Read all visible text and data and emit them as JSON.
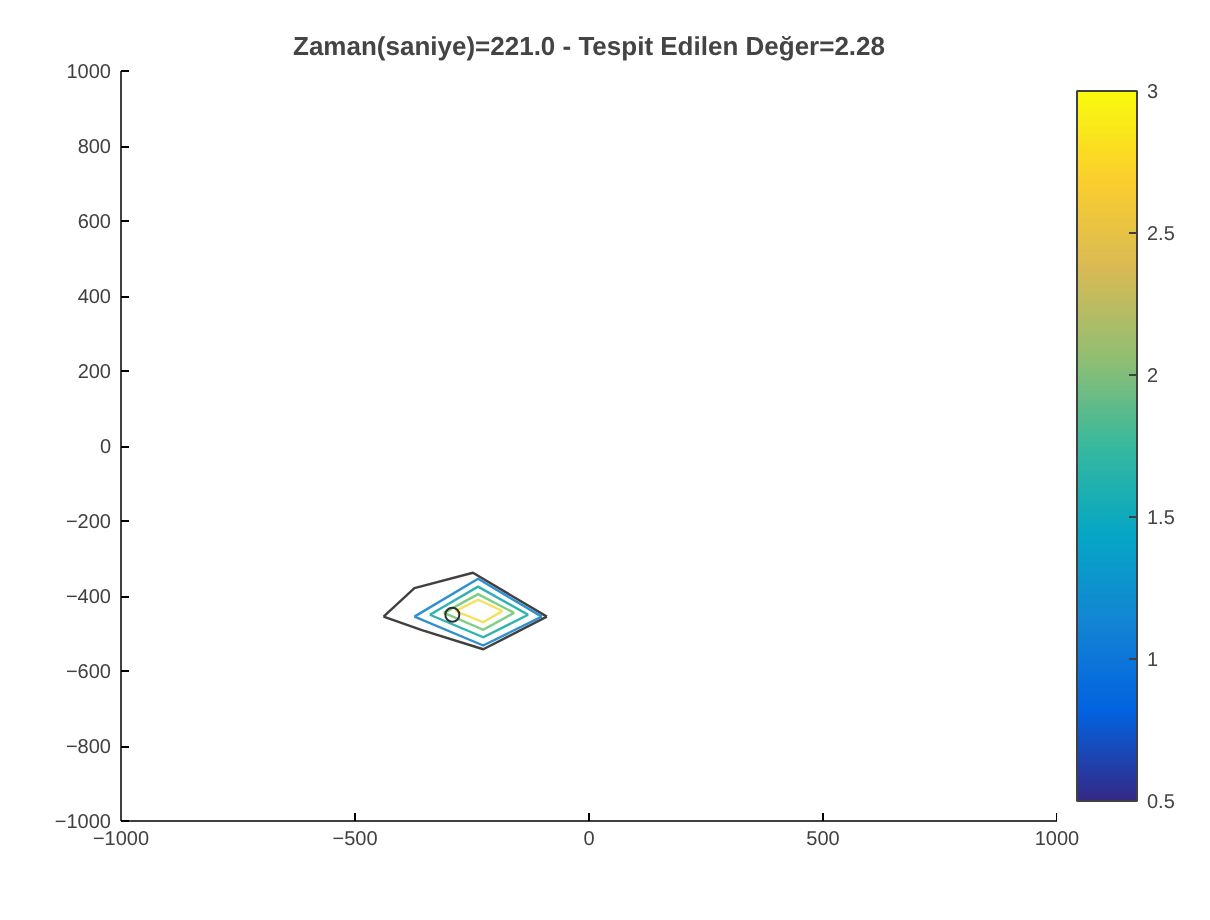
{
  "chart_data": {
    "type": "line",
    "title": "Zaman(saniye)=221.0 - Tespit Edilen Değer=2.28",
    "xlim": [
      -1000,
      1000
    ],
    "xticks": [
      -1000,
      -500,
      0,
      500,
      1000
    ],
    "ylim": [
      -1000,
      1000
    ],
    "yticks": [
      -1000,
      -800,
      -600,
      -400,
      -200,
      0,
      200,
      400,
      600,
      800,
      1000
    ],
    "clim": [
      0.5,
      3
    ],
    "cticks": [
      0.5,
      1,
      1.5,
      2,
      2.5,
      3
    ],
    "grid": false,
    "series": [
      {
        "color": "#404040",
        "x": [
          -439,
          -373,
          -248,
          -90
        ],
        "values": [
          -455,
          -379,
          -338,
          -455
        ]
      },
      {
        "color": "#404040",
        "x": [
          -439,
          -357,
          -226,
          -90
        ],
        "values": [
          -455,
          -491,
          -542,
          -455
        ]
      },
      {
        "color": "#2f8fd0",
        "x": [
          -373,
          -237,
          -101
        ],
        "values": [
          -455,
          -354,
          -455
        ]
      },
      {
        "color": "#2f8fd0",
        "x": [
          -373,
          -226,
          -101
        ],
        "values": [
          -455,
          -532,
          -455
        ]
      },
      {
        "color": "#2eb3b0",
        "x": [
          -340,
          -237,
          -130
        ],
        "values": [
          -450,
          -375,
          -450
        ]
      },
      {
        "color": "#2eb3b0",
        "x": [
          -340,
          -226,
          -130
        ],
        "values": [
          -450,
          -510,
          -450
        ]
      },
      {
        "color": "#7ccf80",
        "x": [
          -310,
          -237,
          -160
        ],
        "values": [
          -445,
          -395,
          -445
        ]
      },
      {
        "color": "#7ccf80",
        "x": [
          -310,
          -226,
          -160
        ],
        "values": [
          -445,
          -490,
          -445
        ]
      },
      {
        "color": "#f5e05a",
        "x": [
          -285,
          -237,
          -185
        ],
        "values": [
          -440,
          -410,
          -440
        ]
      },
      {
        "color": "#f5e05a",
        "x": [
          -285,
          -226,
          -185
        ],
        "values": [
          -440,
          -470,
          -440
        ]
      },
      {
        "type": "scatter",
        "marker": "circle",
        "color": "#303030",
        "x": [
          -292
        ],
        "values": [
          -450
        ]
      }
    ]
  }
}
